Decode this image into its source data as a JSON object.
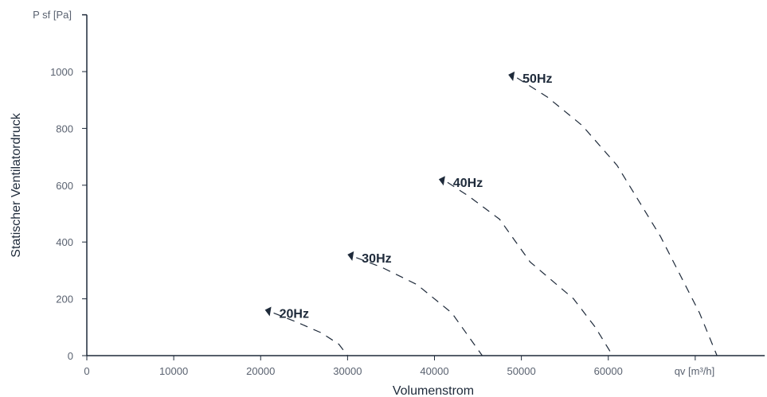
{
  "chart_data": {
    "type": "line",
    "xlabel": "Volumenstrom",
    "ylabel": "Statischer Ventilatordruck",
    "x_unit_label": "qv [m³/h]",
    "y_unit_label": "P sf [Pa]",
    "xlim": [
      0,
      78000
    ],
    "ylim": [
      0,
      1200
    ],
    "x_ticks": [
      0,
      10000,
      20000,
      30000,
      40000,
      50000,
      60000
    ],
    "y_ticks": [
      0,
      200,
      400,
      600,
      800,
      1000
    ],
    "grid": false,
    "line_style": "dashed",
    "colors": {
      "axis": "#1e2a3a",
      "curve": "#1e2a3a",
      "tick_text": "#5a6270"
    },
    "series": [
      {
        "name": "20Hz",
        "points": [
          [
            21500,
            150
          ],
          [
            24000,
            120
          ],
          [
            27000,
            80
          ],
          [
            29000,
            40
          ],
          [
            30000,
            0
          ]
        ]
      },
      {
        "name": "30Hz",
        "points": [
          [
            31000,
            345
          ],
          [
            34000,
            310
          ],
          [
            38000,
            250
          ],
          [
            42000,
            150
          ],
          [
            45500,
            0
          ]
        ]
      },
      {
        "name": "40Hz",
        "points": [
          [
            41500,
            610
          ],
          [
            44000,
            560
          ],
          [
            47500,
            480
          ],
          [
            51000,
            330
          ],
          [
            56000,
            200
          ],
          [
            58500,
            100
          ],
          [
            60500,
            0
          ]
        ]
      },
      {
        "name": "50Hz",
        "points": [
          [
            49500,
            978
          ],
          [
            53000,
            910
          ],
          [
            57000,
            810
          ],
          [
            61000,
            670
          ],
          [
            66000,
            420
          ],
          [
            70500,
            150
          ],
          [
            72500,
            0
          ]
        ]
      }
    ]
  }
}
